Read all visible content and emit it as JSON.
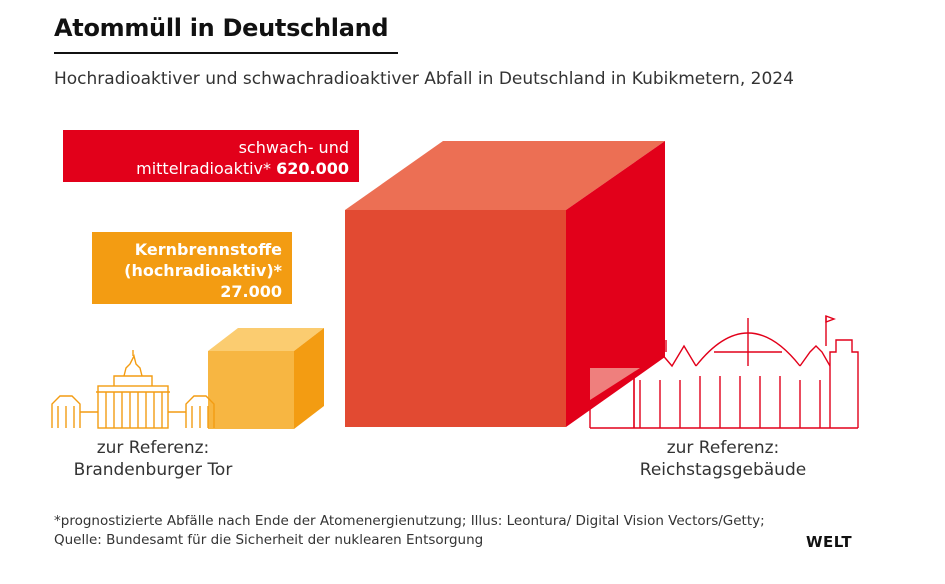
{
  "title": "Atommüll in Deutschland",
  "subtitle": "Hochradioaktiver und schwachradioaktiver Abfall in Deutschland in Kubikmetern, 2024",
  "labels": {
    "red_line1": "schwach- und",
    "red_line2": "mittelradioaktiv*",
    "red_value": "620.000",
    "orange_line1": "Kernbrennstoffe",
    "orange_line2": "(hochradioaktiv)*",
    "orange_value": "27.000"
  },
  "references": {
    "left_line1": "zur Referenz:",
    "left_line2": "Brandenburger Tor",
    "right_line1": "zur Referenz:",
    "right_line2": "Reichstagsgebäude"
  },
  "footnote": "*prognostizierte Abfälle nach Ende der Atomenergienutzung; Illus: Leontura/ Digital Vision Vectors/Getty; Quelle: Bundesamt für die Sicherheit der nuklearen Entsorgung",
  "brand": "WELT",
  "colors": {
    "red": "#e2001a",
    "red_front": "#e24a32",
    "red_top": "#ec6f54",
    "orange": "#f39c12",
    "orange_front": "#f7b642",
    "orange_top": "#fbcc70",
    "outline_orange": "#f39c12",
    "outline_red": "#e2001a"
  },
  "chart_data": {
    "type": "table",
    "categories": [
      "Kernbrennstoffe (hochradioaktiv)*",
      "schwach- und mittelradioaktiv*"
    ],
    "values": [
      27000,
      620000
    ],
    "unit": "Kubikmeter"
  }
}
